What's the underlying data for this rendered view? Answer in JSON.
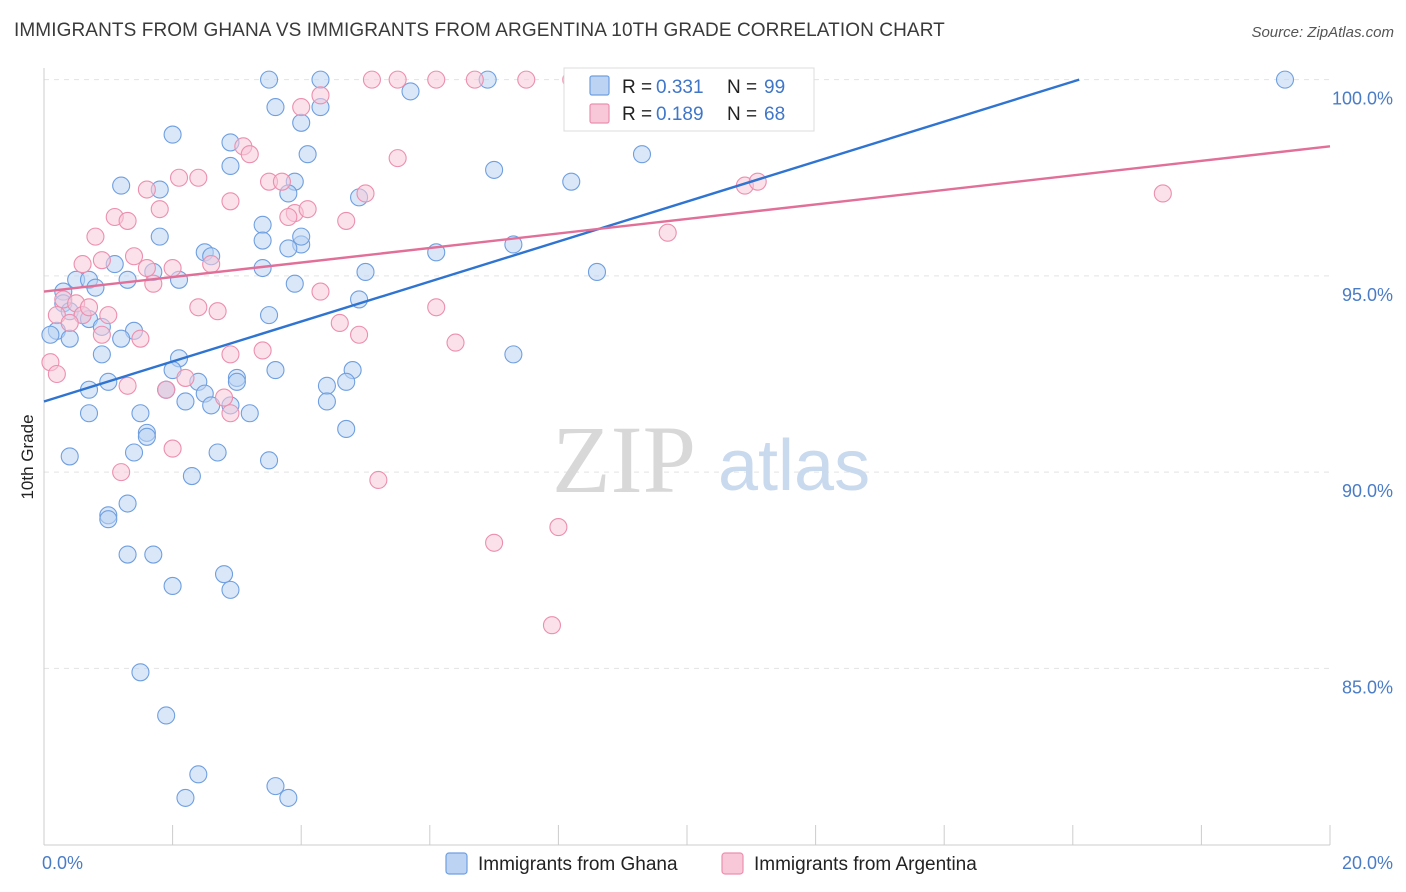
{
  "chart_data": {
    "type": "scatter",
    "title": "IMMIGRANTS FROM GHANA VS IMMIGRANTS FROM ARGENTINA 10TH GRADE CORRELATION CHART",
    "source": "Source: ZipAtlas.com",
    "xlabel": "",
    "ylabel": "10th Grade",
    "xlim": [
      0,
      20
    ],
    "ylim": [
      80.5,
      100.5
    ],
    "x_tick_labels": [
      {
        "v": 0,
        "label": "0.0%"
      },
      {
        "v": 20,
        "label": "20.0%"
      }
    ],
    "y_tick_labels": [
      {
        "v": 100,
        "label": "100.0%"
      },
      {
        "v": 95,
        "label": "95.0%"
      },
      {
        "v": 90,
        "label": "90.0%"
      },
      {
        "v": 85,
        "label": "85.0%"
      }
    ],
    "legend": {
      "r_label": "R =",
      "n_label": "N =",
      "entries": [
        {
          "name": "Immigrants from Ghana",
          "r": "0.331",
          "n": "99",
          "color": "#6f9fe0",
          "fill": "#bcd3f3"
        },
        {
          "name": "Immigrants from Argentina",
          "r": "0.189",
          "n": "68",
          "color": "#ec8fae",
          "fill": "#f8c8d8"
        }
      ]
    },
    "watermark": {
      "zip": "ZIP",
      "atlas": "atlas"
    },
    "series": [
      {
        "name": "Immigrants from Ghana",
        "color": "#6f9fe0",
        "trend": {
          "x0": 0,
          "y0": 91.8,
          "x1": 16.1,
          "y1": 100.0,
          "color": "#2f74d0"
        },
        "points": [
          [
            3.5,
            100
          ],
          [
            4.3,
            100
          ],
          [
            6.9,
            100
          ],
          [
            19.3,
            100
          ],
          [
            5.7,
            99.7
          ],
          [
            4.3,
            99.3
          ],
          [
            4.0,
            98.9
          ],
          [
            2.0,
            98.6
          ],
          [
            2.9,
            98.4
          ],
          [
            4.1,
            98.1
          ],
          [
            9.3,
            98.1
          ],
          [
            7.0,
            97.7
          ],
          [
            8.2,
            97.4
          ],
          [
            1.2,
            97.3
          ],
          [
            1.8,
            97.2
          ],
          [
            3.9,
            97.4
          ],
          [
            3.8,
            97.1
          ],
          [
            4.9,
            97.0
          ],
          [
            3.4,
            96.3
          ],
          [
            1.8,
            96.0
          ],
          [
            3.4,
            95.9
          ],
          [
            4.0,
            95.8
          ],
          [
            3.8,
            95.7
          ],
          [
            6.1,
            95.6
          ],
          [
            7.3,
            95.8
          ],
          [
            2.5,
            95.6
          ],
          [
            2.6,
            95.5
          ],
          [
            1.1,
            95.3
          ],
          [
            3.4,
            95.2
          ],
          [
            1.7,
            95.1
          ],
          [
            5.0,
            95.1
          ],
          [
            8.6,
            95.1
          ],
          [
            0.5,
            94.9
          ],
          [
            0.7,
            94.9
          ],
          [
            1.3,
            94.9
          ],
          [
            2.1,
            94.9
          ],
          [
            3.9,
            94.8
          ],
          [
            0.3,
            94.6
          ],
          [
            0.8,
            94.7
          ],
          [
            0.3,
            94.3
          ],
          [
            0.4,
            94.1
          ],
          [
            0.6,
            94.0
          ],
          [
            0.7,
            93.9
          ],
          [
            3.5,
            94.0
          ],
          [
            4.9,
            94.4
          ],
          [
            0.2,
            93.6
          ],
          [
            0.9,
            93.7
          ],
          [
            1.4,
            93.6
          ],
          [
            0.1,
            93.5
          ],
          [
            0.4,
            93.4
          ],
          [
            1.2,
            93.4
          ],
          [
            0.9,
            93.0
          ],
          [
            2.1,
            92.9
          ],
          [
            3.6,
            92.6
          ],
          [
            2.0,
            92.6
          ],
          [
            4.8,
            92.6
          ],
          [
            1.0,
            92.3
          ],
          [
            2.4,
            92.3
          ],
          [
            3.0,
            92.4
          ],
          [
            0.7,
            92.1
          ],
          [
            1.9,
            92.1
          ],
          [
            3.0,
            92.3
          ],
          [
            4.4,
            92.2
          ],
          [
            4.7,
            92.3
          ],
          [
            2.5,
            92.0
          ],
          [
            1.9,
            92.1
          ],
          [
            2.2,
            91.8
          ],
          [
            2.6,
            91.7
          ],
          [
            2.9,
            91.7
          ],
          [
            4.4,
            91.8
          ],
          [
            0.7,
            91.5
          ],
          [
            1.5,
            91.5
          ],
          [
            3.2,
            91.5
          ],
          [
            7.3,
            93.0
          ],
          [
            1.6,
            91.0
          ],
          [
            1.6,
            90.9
          ],
          [
            4.7,
            91.1
          ],
          [
            1.4,
            90.5
          ],
          [
            2.7,
            90.5
          ],
          [
            0.4,
            90.4
          ],
          [
            3.5,
            90.3
          ],
          [
            2.3,
            89.9
          ],
          [
            1.3,
            89.2
          ],
          [
            1.0,
            88.9
          ],
          [
            1.0,
            88.8
          ],
          [
            1.3,
            87.9
          ],
          [
            1.7,
            87.9
          ],
          [
            2.8,
            87.4
          ],
          [
            2.0,
            87.1
          ],
          [
            2.9,
            87.0
          ],
          [
            1.5,
            84.9
          ],
          [
            1.9,
            83.8
          ],
          [
            2.4,
            82.3
          ],
          [
            3.6,
            82.0
          ],
          [
            2.2,
            81.7
          ],
          [
            3.8,
            81.7
          ],
          [
            2.9,
            97.8
          ],
          [
            3.6,
            99.3
          ],
          [
            4.0,
            96.0
          ]
        ]
      },
      {
        "name": "Immigrants from Argentina",
        "color": "#ec8fae",
        "trend": {
          "x0": 0,
          "y0": 94.6,
          "x1": 20,
          "y1": 98.3,
          "color": "#e16f98"
        },
        "points": [
          [
            5.1,
            100
          ],
          [
            5.5,
            100
          ],
          [
            6.1,
            100
          ],
          [
            6.7,
            100
          ],
          [
            8.2,
            100
          ],
          [
            4.3,
            99.6
          ],
          [
            4.0,
            99.3
          ],
          [
            3.1,
            98.3
          ],
          [
            3.2,
            98.1
          ],
          [
            5.5,
            98.0
          ],
          [
            2.1,
            97.5
          ],
          [
            2.4,
            97.5
          ],
          [
            3.5,
            97.4
          ],
          [
            3.7,
            97.4
          ],
          [
            1.6,
            97.2
          ],
          [
            2.9,
            96.9
          ],
          [
            5.0,
            97.1
          ],
          [
            10.9,
            97.3
          ],
          [
            17.4,
            97.1
          ],
          [
            1.1,
            96.5
          ],
          [
            1.3,
            96.4
          ],
          [
            1.8,
            96.7
          ],
          [
            3.9,
            96.6
          ],
          [
            4.1,
            96.7
          ],
          [
            4.7,
            96.4
          ],
          [
            9.7,
            96.1
          ],
          [
            0.8,
            96.0
          ],
          [
            0.9,
            95.4
          ],
          [
            1.4,
            95.5
          ],
          [
            1.6,
            95.2
          ],
          [
            2.0,
            95.2
          ],
          [
            2.6,
            95.3
          ],
          [
            0.6,
            95.3
          ],
          [
            1.7,
            94.8
          ],
          [
            4.3,
            94.6
          ],
          [
            0.3,
            94.4
          ],
          [
            0.5,
            94.3
          ],
          [
            2.4,
            94.2
          ],
          [
            6.1,
            94.2
          ],
          [
            0.2,
            94.0
          ],
          [
            0.6,
            94.0
          ],
          [
            0.7,
            94.2
          ],
          [
            1.0,
            94.0
          ],
          [
            2.7,
            94.1
          ],
          [
            0.4,
            93.8
          ],
          [
            0.9,
            93.5
          ],
          [
            1.5,
            93.4
          ],
          [
            4.6,
            93.8
          ],
          [
            4.9,
            93.5
          ],
          [
            6.4,
            93.3
          ],
          [
            3.4,
            93.1
          ],
          [
            2.9,
            93.0
          ],
          [
            0.1,
            92.8
          ],
          [
            0.2,
            92.5
          ],
          [
            1.3,
            92.2
          ],
          [
            1.9,
            92.1
          ],
          [
            2.2,
            92.4
          ],
          [
            2.8,
            91.9
          ],
          [
            2.9,
            91.5
          ],
          [
            2.0,
            90.6
          ],
          [
            1.2,
            90.0
          ],
          [
            5.2,
            89.8
          ],
          [
            7.0,
            88.2
          ],
          [
            8.0,
            88.6
          ],
          [
            7.9,
            86.1
          ],
          [
            11.1,
            97.4
          ],
          [
            7.5,
            100
          ],
          [
            3.8,
            96.5
          ]
        ]
      }
    ]
  }
}
